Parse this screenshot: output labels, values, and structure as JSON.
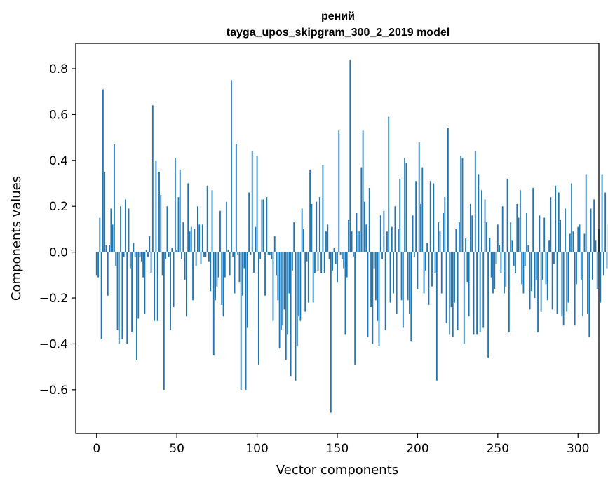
{
  "chart_data": {
    "type": "bar",
    "title_line1": "рений",
    "title_line2": "tayga_upos_skipgram_300_2_2019 model",
    "xlabel": "Vector components",
    "ylabel": "Components values",
    "xlim": [
      -13,
      313
    ],
    "ylim": [
      -0.79,
      0.91
    ],
    "x_ticks": [
      0,
      50,
      100,
      150,
      200,
      250,
      300
    ],
    "x_tick_labels": [
      "0",
      "50",
      "100",
      "150",
      "200",
      "250",
      "300"
    ],
    "y_ticks": [
      -0.6,
      -0.4,
      -0.2,
      0.0,
      0.2,
      0.4,
      0.6,
      0.8
    ],
    "y_tick_labels": [
      "−0.6",
      "−0.4",
      "−0.2",
      "0.0",
      "0.2",
      "0.4",
      "0.6",
      "0.8"
    ],
    "grid": false,
    "bar_color": "#1f77b4",
    "x_start": 0,
    "values": [
      -0.1,
      -0.11,
      0.15,
      -0.38,
      0.71,
      0.35,
      0.03,
      -0.19,
      0.03,
      0.19,
      0.12,
      0.47,
      -0.06,
      -0.34,
      -0.4,
      0.2,
      -0.38,
      -0.02,
      0.23,
      -0.4,
      0.19,
      -0.07,
      -0.35,
      0.04,
      -0.02,
      -0.47,
      -0.29,
      -0.02,
      -0.04,
      -0.11,
      -0.27,
      0.01,
      -0.02,
      0.07,
      -0.09,
      0.64,
      -0.3,
      0.4,
      -0.3,
      0.35,
      0.25,
      -0.1,
      -0.6,
      -0.03,
      0.2,
      -0.02,
      -0.34,
      0.02,
      -0.24,
      0.41,
      0.01,
      0.24,
      0.36,
      -0.03,
      0.13,
      -0.12,
      -0.28,
      0.3,
      0.09,
      0.11,
      -0.21,
      0.1,
      -0.06,
      0.2,
      0.12,
      -0.05,
      0.12,
      -0.02,
      -0.02,
      0.29,
      -0.04,
      -0.17,
      0.27,
      -0.45,
      -0.21,
      -0.15,
      -0.11,
      0.18,
      -0.23,
      -0.28,
      -0.11,
      0.22,
      0.01,
      -0.1,
      0.75,
      -0.02,
      -0.18,
      0.47,
      -0.01,
      -0.13,
      -0.6,
      -0.19,
      -0.07,
      -0.6,
      -0.33,
      0.26,
      -0.01,
      0.44,
      -0.09,
      0.11,
      0.42,
      -0.49,
      -0.03,
      0.23,
      0.23,
      -0.19,
      0.24,
      -0.01,
      -0.01,
      -0.03,
      -0.3,
      0.07,
      -0.1,
      -0.21,
      -0.42,
      -0.34,
      -0.32,
      -0.25,
      -0.47,
      -0.36,
      -0.18,
      -0.54,
      -0.08,
      0.13,
      -0.56,
      -0.41,
      -0.28,
      -0.3,
      0.19,
      0.1,
      -0.26,
      -0.04,
      -0.22,
      0.36,
      0.21,
      -0.22,
      -0.09,
      0.22,
      -0.08,
      0.24,
      -0.09,
      0.38,
      -0.09,
      0.09,
      0.12,
      -0.03,
      -0.7,
      -0.08,
      0.02,
      -0.05,
      -0.13,
      0.53,
      -0.01,
      -0.03,
      -0.07,
      -0.36,
      -0.11,
      0.14,
      0.84,
      0.09,
      -0.02,
      -0.49,
      0.17,
      0.09,
      0.09,
      0.37,
      0.53,
      0.22,
      0.12,
      -0.37,
      0.28,
      -0.24,
      -0.4,
      -0.07,
      -0.21,
      -0.3,
      -0.41,
      0.16,
      -0.03,
      0.18,
      -0.34,
      0.09,
      0.59,
      -0.22,
      0.11,
      -0.18,
      0.2,
      -0.27,
      0.1,
      0.32,
      -0.21,
      -0.33,
      0.41,
      0.39,
      -0.21,
      -0.27,
      -0.39,
      0.16,
      -0.02,
      0.31,
      -0.16,
      0.48,
      0.21,
      0.37,
      -0.18,
      -0.08,
      0.04,
      -0.23,
      0.31,
      -0.15,
      0.3,
      -0.09,
      -0.56,
      0.13,
      0.09,
      -0.18,
      0.17,
      0.24,
      -0.31,
      0.54,
      -0.36,
      -0.24,
      -0.37,
      -0.22,
      0.1,
      -0.34,
      0.13,
      0.42,
      0.41,
      -0.4,
      0.06,
      -0.13,
      -0.28,
      0.21,
      0.16,
      -0.36,
      0.44,
      -0.36,
      0.34,
      -0.35,
      0.27,
      -0.33,
      0.23,
      0.13,
      -0.46,
      0.06,
      -0.11,
      -0.18,
      -0.16,
      -0.05,
      0.12,
      0.03,
      -0.09,
      0.2,
      -0.18,
      -0.15,
      0.32,
      -0.35,
      0.13,
      0.05,
      -0.06,
      -0.09,
      0.21,
      0.15,
      0.27,
      -0.14,
      -0.18,
      -0.06,
      0.17,
      0.03,
      -0.25,
      -0.17,
      0.28,
      -0.2,
      -0.12,
      -0.35,
      0.16,
      -0.26,
      -0.12,
      0.15,
      -0.14,
      -0.21,
      0.05,
      0.24,
      -0.25,
      -0.05,
      0.29,
      -0.27,
      0.26,
      0.14,
      -0.28,
      -0.32,
      0.19,
      -0.26,
      -0.22,
      0.08,
      0.3,
      0.09,
      -0.32,
      -0.14,
      0.11,
      0.12,
      -0.12,
      -0.28,
      0.08,
      0.34,
      -0.27,
      -0.37,
      0.19,
      -0.12,
      0.23,
      0.05,
      -0.16,
      0.1,
      -0.22,
      0.34,
      -0.1,
      0.26,
      -0.07,
      0.12
    ]
  }
}
